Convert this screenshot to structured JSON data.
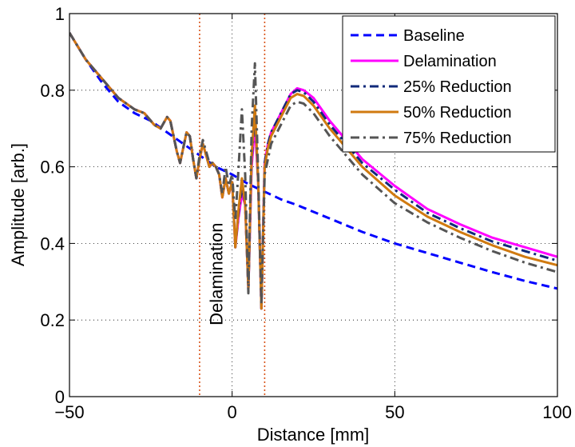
{
  "chart_data": {
    "type": "line",
    "xlabel": "Distance [mm]",
    "ylabel": "Amplitude [arb.]",
    "xlim": [
      -50,
      100
    ],
    "ylim": [
      0,
      1
    ],
    "xticks": [
      -50,
      0,
      50,
      100
    ],
    "yticks": [
      0,
      0.2,
      0.4,
      0.6,
      0.8,
      1
    ],
    "xtick_labels": [
      "−50",
      "0",
      "50",
      "100"
    ],
    "ytick_labels": [
      "0",
      "0.2",
      "0.4",
      "0.6",
      "0.8",
      "1"
    ],
    "grid": true,
    "legend_position": "top-right",
    "annotation": {
      "text": "Delamination",
      "x": -3,
      "y": 0.32,
      "orientation": "vertical"
    },
    "vertical_lines": [
      {
        "x": -10,
        "color": "#d9541a",
        "style": "dotted"
      },
      {
        "x": 10,
        "color": "#d9541a",
        "style": "dotted"
      }
    ],
    "series": [
      {
        "name": "Baseline",
        "color": "#0000ff",
        "dash": "dashed",
        "width": 3,
        "points": [
          [
            -50,
            0.95
          ],
          [
            -45,
            0.88
          ],
          [
            -40,
            0.82
          ],
          [
            -35,
            0.77
          ],
          [
            -30,
            0.74
          ],
          [
            -25,
            0.72
          ],
          [
            -20,
            0.69
          ],
          [
            -15,
            0.66
          ],
          [
            -10,
            0.63
          ],
          [
            -5,
            0.6
          ],
          [
            0,
            0.58
          ],
          [
            5,
            0.555
          ],
          [
            10,
            0.535
          ],
          [
            15,
            0.515
          ],
          [
            20,
            0.5
          ],
          [
            30,
            0.465
          ],
          [
            40,
            0.43
          ],
          [
            50,
            0.4
          ],
          [
            60,
            0.375
          ],
          [
            70,
            0.35
          ],
          [
            80,
            0.325
          ],
          [
            90,
            0.302
          ],
          [
            100,
            0.282
          ]
        ]
      },
      {
        "name": "Delamination",
        "color": "#ff00ff",
        "dash": "solid",
        "width": 3,
        "points": [
          [
            -50,
            0.95
          ],
          [
            -45,
            0.88
          ],
          [
            -40,
            0.83
          ],
          [
            -35,
            0.78
          ],
          [
            -30,
            0.75
          ],
          [
            -27,
            0.74
          ],
          [
            -24,
            0.71
          ],
          [
            -22,
            0.7
          ],
          [
            -20,
            0.73
          ],
          [
            -19,
            0.72
          ],
          [
            -17,
            0.64
          ],
          [
            -16,
            0.61
          ],
          [
            -14,
            0.69
          ],
          [
            -13,
            0.68
          ],
          [
            -12,
            0.62
          ],
          [
            -11,
            0.57
          ],
          [
            -10,
            0.62
          ],
          [
            -9,
            0.66
          ],
          [
            -8,
            0.63
          ],
          [
            -7,
            0.6
          ],
          [
            -6,
            0.61
          ],
          [
            -5,
            0.6
          ],
          [
            -4,
            0.58
          ],
          [
            -3,
            0.52
          ],
          [
            -2,
            0.57
          ],
          [
            -1,
            0.53
          ],
          [
            0,
            0.56
          ],
          [
            1,
            0.39
          ],
          [
            2,
            0.47
          ],
          [
            3,
            0.53
          ],
          [
            4,
            0.5
          ],
          [
            5,
            0.28
          ],
          [
            6,
            0.6
          ],
          [
            7,
            0.71
          ],
          [
            8,
            0.56
          ],
          [
            9,
            0.23
          ],
          [
            10,
            0.61
          ],
          [
            11,
            0.66
          ],
          [
            12,
            0.69
          ],
          [
            15,
            0.74
          ],
          [
            18,
            0.79
          ],
          [
            20,
            0.805
          ],
          [
            22,
            0.8
          ],
          [
            25,
            0.78
          ],
          [
            30,
            0.72
          ],
          [
            40,
            0.62
          ],
          [
            50,
            0.55
          ],
          [
            60,
            0.49
          ],
          [
            70,
            0.45
          ],
          [
            80,
            0.415
          ],
          [
            90,
            0.39
          ],
          [
            100,
            0.365
          ]
        ]
      },
      {
        "name": "25% Reduction",
        "color": "#102a7a",
        "dash": "dashdot",
        "width": 3,
        "points": [
          [
            -50,
            0.95
          ],
          [
            -45,
            0.88
          ],
          [
            -40,
            0.83
          ],
          [
            -35,
            0.78
          ],
          [
            -30,
            0.75
          ],
          [
            -27,
            0.74
          ],
          [
            -24,
            0.71
          ],
          [
            -22,
            0.7
          ],
          [
            -20,
            0.73
          ],
          [
            -19,
            0.72
          ],
          [
            -17,
            0.64
          ],
          [
            -16,
            0.61
          ],
          [
            -14,
            0.69
          ],
          [
            -13,
            0.68
          ],
          [
            -12,
            0.62
          ],
          [
            -11,
            0.57
          ],
          [
            -10,
            0.62
          ],
          [
            -9,
            0.66
          ],
          [
            -8,
            0.63
          ],
          [
            -7,
            0.6
          ],
          [
            -6,
            0.61
          ],
          [
            -5,
            0.6
          ],
          [
            -4,
            0.58
          ],
          [
            -3,
            0.52
          ],
          [
            -2,
            0.57
          ],
          [
            -1,
            0.53
          ],
          [
            0,
            0.56
          ],
          [
            1,
            0.39
          ],
          [
            2,
            0.48
          ],
          [
            3,
            0.55
          ],
          [
            4,
            0.5
          ],
          [
            5,
            0.28
          ],
          [
            6,
            0.62
          ],
          [
            7,
            0.74
          ],
          [
            8,
            0.56
          ],
          [
            9,
            0.23
          ],
          [
            10,
            0.61
          ],
          [
            11,
            0.66
          ],
          [
            12,
            0.69
          ],
          [
            15,
            0.74
          ],
          [
            18,
            0.79
          ],
          [
            20,
            0.8
          ],
          [
            22,
            0.795
          ],
          [
            25,
            0.77
          ],
          [
            30,
            0.71
          ],
          [
            40,
            0.61
          ],
          [
            50,
            0.54
          ],
          [
            60,
            0.48
          ],
          [
            70,
            0.44
          ],
          [
            80,
            0.405
          ],
          [
            90,
            0.38
          ],
          [
            100,
            0.355
          ]
        ]
      },
      {
        "name": "50% Reduction",
        "color": "#d07a10",
        "dash": "solid",
        "width": 3,
        "points": [
          [
            -50,
            0.95
          ],
          [
            -45,
            0.88
          ],
          [
            -40,
            0.83
          ],
          [
            -35,
            0.78
          ],
          [
            -30,
            0.75
          ],
          [
            -27,
            0.74
          ],
          [
            -24,
            0.71
          ],
          [
            -22,
            0.7
          ],
          [
            -20,
            0.73
          ],
          [
            -19,
            0.72
          ],
          [
            -17,
            0.64
          ],
          [
            -16,
            0.61
          ],
          [
            -14,
            0.69
          ],
          [
            -13,
            0.68
          ],
          [
            -12,
            0.62
          ],
          [
            -11,
            0.57
          ],
          [
            -10,
            0.62
          ],
          [
            -9,
            0.66
          ],
          [
            -8,
            0.63
          ],
          [
            -7,
            0.6
          ],
          [
            -6,
            0.61
          ],
          [
            -5,
            0.6
          ],
          [
            -4,
            0.58
          ],
          [
            -3,
            0.52
          ],
          [
            -2,
            0.57
          ],
          [
            -1,
            0.53
          ],
          [
            0,
            0.56
          ],
          [
            1,
            0.39
          ],
          [
            2,
            0.49
          ],
          [
            3,
            0.57
          ],
          [
            4,
            0.5
          ],
          [
            5,
            0.28
          ],
          [
            6,
            0.63
          ],
          [
            7,
            0.76
          ],
          [
            8,
            0.56
          ],
          [
            9,
            0.23
          ],
          [
            10,
            0.6
          ],
          [
            11,
            0.65
          ],
          [
            12,
            0.68
          ],
          [
            15,
            0.73
          ],
          [
            18,
            0.78
          ],
          [
            20,
            0.79
          ],
          [
            22,
            0.785
          ],
          [
            25,
            0.76
          ],
          [
            30,
            0.7
          ],
          [
            40,
            0.6
          ],
          [
            50,
            0.525
          ],
          [
            60,
            0.47
          ],
          [
            70,
            0.43
          ],
          [
            80,
            0.395
          ],
          [
            90,
            0.365
          ],
          [
            100,
            0.343
          ]
        ]
      },
      {
        "name": "75% Reduction",
        "color": "#555555",
        "dash": "dashdot",
        "width": 3,
        "points": [
          [
            -50,
            0.95
          ],
          [
            -45,
            0.88
          ],
          [
            -40,
            0.83
          ],
          [
            -35,
            0.78
          ],
          [
            -30,
            0.75
          ],
          [
            -27,
            0.74
          ],
          [
            -24,
            0.71
          ],
          [
            -22,
            0.7
          ],
          [
            -20,
            0.73
          ],
          [
            -19,
            0.72
          ],
          [
            -17,
            0.64
          ],
          [
            -16,
            0.61
          ],
          [
            -14,
            0.69
          ],
          [
            -13,
            0.68
          ],
          [
            -12,
            0.62
          ],
          [
            -11,
            0.57
          ],
          [
            -10,
            0.63
          ],
          [
            -9,
            0.67
          ],
          [
            -8,
            0.64
          ],
          [
            -7,
            0.61
          ],
          [
            -6,
            0.61
          ],
          [
            -5,
            0.6
          ],
          [
            -4,
            0.58
          ],
          [
            -3,
            0.53
          ],
          [
            -2,
            0.6
          ],
          [
            -1,
            0.55
          ],
          [
            0,
            0.58
          ],
          [
            1,
            0.46
          ],
          [
            2,
            0.6
          ],
          [
            3,
            0.75
          ],
          [
            4,
            0.58
          ],
          [
            5,
            0.27
          ],
          [
            6,
            0.7
          ],
          [
            7,
            0.87
          ],
          [
            8,
            0.58
          ],
          [
            9,
            0.24
          ],
          [
            10,
            0.58
          ],
          [
            11,
            0.62
          ],
          [
            12,
            0.66
          ],
          [
            15,
            0.71
          ],
          [
            18,
            0.76
          ],
          [
            20,
            0.77
          ],
          [
            22,
            0.765
          ],
          [
            25,
            0.74
          ],
          [
            30,
            0.68
          ],
          [
            40,
            0.58
          ],
          [
            50,
            0.505
          ],
          [
            60,
            0.455
          ],
          [
            70,
            0.415
          ],
          [
            80,
            0.38
          ],
          [
            90,
            0.35
          ],
          [
            100,
            0.325
          ]
        ]
      }
    ]
  }
}
